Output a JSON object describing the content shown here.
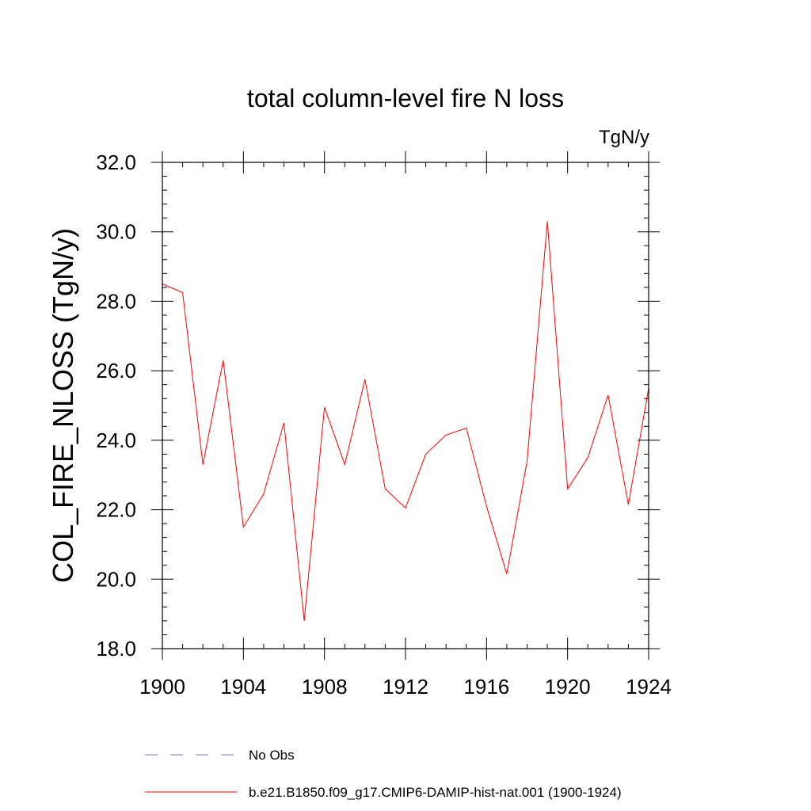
{
  "chart_data": {
    "type": "line",
    "title": "total column-level fire N loss",
    "units": "TgN/y",
    "ylabel": "COL_FIRE_NLOSS  (TgN/y)",
    "xlabel": "",
    "xlim": [
      1900,
      1924
    ],
    "ylim": [
      18.0,
      32.0
    ],
    "x_major_ticks": [
      1900,
      1904,
      1908,
      1912,
      1916,
      1920,
      1924
    ],
    "x_tick_labels": [
      "1900",
      "1904",
      "1908",
      "1912",
      "1916",
      "1920",
      "1924"
    ],
    "y_major_ticks": [
      18.0,
      20.0,
      22.0,
      24.0,
      26.0,
      28.0,
      30.0,
      32.0
    ],
    "y_tick_labels": [
      "18.0",
      "20.0",
      "22.0",
      "24.0",
      "26.0",
      "28.0",
      "30.0",
      "32.0"
    ],
    "x_minor_step": 1,
    "y_minor_step": 0.4,
    "grid": false,
    "legend_position": "bottom",
    "series": [
      {
        "name": "b.e21.B1850.f09_g17.CMIP6-DAMIP-hist-nat.001 (1900-1924)",
        "color": "#ff0000",
        "style": "solid",
        "x": [
          1900,
          1901,
          1902,
          1903,
          1904,
          1905,
          1906,
          1907,
          1908,
          1909,
          1910,
          1911,
          1912,
          1913,
          1914,
          1915,
          1916,
          1917,
          1918,
          1919,
          1920,
          1921,
          1922,
          1923,
          1924
        ],
        "values": [
          28.5,
          28.25,
          23.3,
          26.3,
          21.5,
          22.45,
          24.5,
          18.8,
          24.95,
          23.3,
          25.75,
          22.6,
          22.05,
          23.6,
          24.15,
          24.35,
          22.1,
          20.15,
          23.4,
          30.3,
          22.6,
          23.5,
          25.3,
          22.15,
          25.5
        ]
      }
    ],
    "legend": [
      {
        "label": "No Obs",
        "color": "#7b6fd0",
        "style": "dashed"
      },
      {
        "label": "b.e21.B1850.f09_g17.CMIP6-DAMIP-hist-nat.001 (1900-1924)",
        "color": "#ff0000",
        "style": "solid"
      }
    ]
  }
}
